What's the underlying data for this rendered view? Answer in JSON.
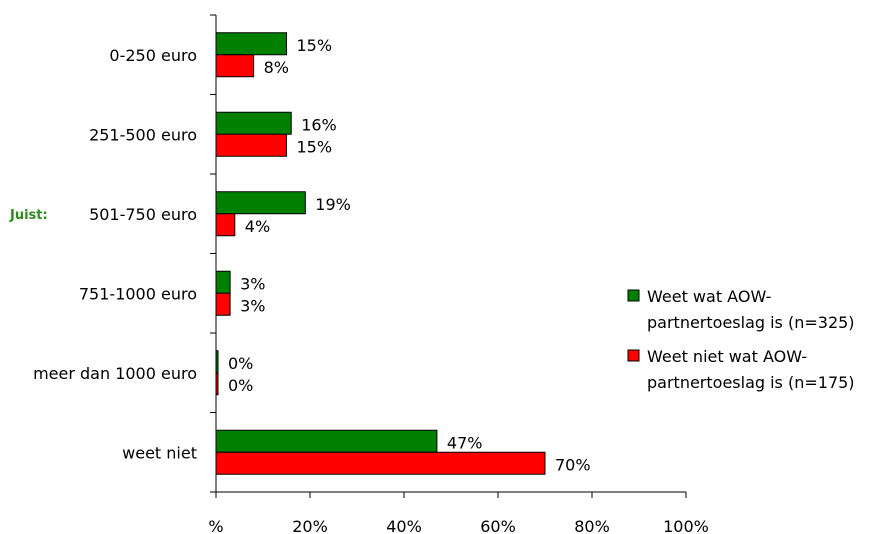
{
  "chart_data": {
    "type": "bar",
    "orientation": "horizontal",
    "categories": [
      "0-250 euro",
      "251-500 euro",
      "501-750 euro",
      "751-1000 euro",
      "meer dan 1000 euro",
      "weet niet"
    ],
    "series": [
      {
        "name": "Weet wat AOW-partnertoeslag is (n=325)",
        "legend_lines": [
          "Weet wat AOW-",
          "partnertoeslag is (n=325)"
        ],
        "color": "#008000",
        "values": [
          15,
          16,
          19,
          3,
          0,
          47
        ],
        "labels": [
          "15%",
          "16%",
          "19%",
          "3%",
          "0%",
          "47%"
        ]
      },
      {
        "name": "Weet niet wat AOW-partnertoeslag is (n=175)",
        "legend_lines": [
          "Weet niet wat AOW-",
          "partnertoeslag is (n=175)"
        ],
        "color": "#ff0000",
        "values": [
          8,
          15,
          4,
          3,
          0,
          70
        ],
        "labels": [
          "8%",
          "15%",
          "4%",
          "3%",
          "0%",
          "70%"
        ]
      }
    ],
    "xlim": [
      0,
      100
    ],
    "xticks": [
      0,
      20,
      40,
      60,
      80,
      100
    ],
    "xtick_labels": [
      "%",
      "20%",
      "40%",
      "60%",
      "80%",
      "100%"
    ],
    "annotation": {
      "text": "Juist:",
      "category": "501-750 euro",
      "color": "#2e8b1e"
    },
    "legend_position": "right",
    "grid": false
  }
}
